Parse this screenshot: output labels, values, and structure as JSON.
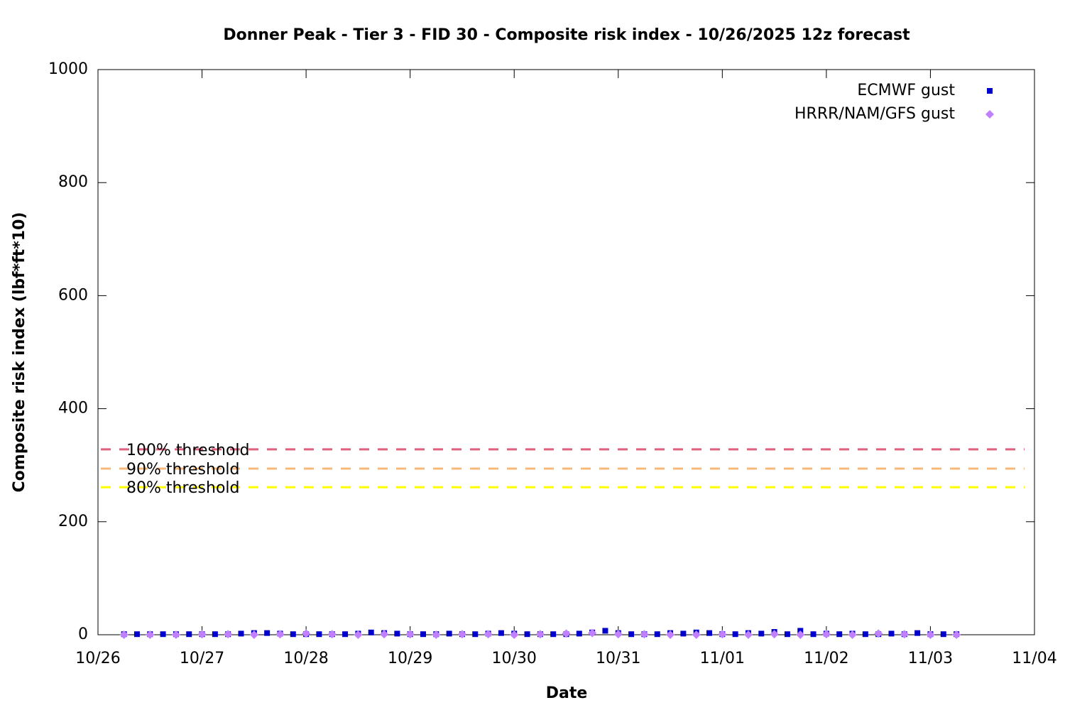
{
  "chart_data": {
    "type": "scatter",
    "title": "Donner Peak - Tier 3 - FID 30 - Composite risk index - 10/26/2025 12z forecast",
    "xlabel": "Date",
    "ylabel": "Composite risk index (lbf*ft*10)",
    "xlim": [
      0,
      9
    ],
    "xticks": [
      {
        "value": 0,
        "label": "10/26"
      },
      {
        "value": 1,
        "label": "10/27"
      },
      {
        "value": 2,
        "label": "10/28"
      },
      {
        "value": 3,
        "label": "10/29"
      },
      {
        "value": 4,
        "label": "10/30"
      },
      {
        "value": 5,
        "label": "10/31"
      },
      {
        "value": 6,
        "label": "11/01"
      },
      {
        "value": 7,
        "label": "11/02"
      },
      {
        "value": 8,
        "label": "11/03"
      },
      {
        "value": 9,
        "label": "11/04"
      }
    ],
    "ylim": [
      0,
      1000
    ],
    "yticks": [
      0,
      200,
      400,
      600,
      800,
      1000
    ],
    "legend": "top-right",
    "thresholds": [
      {
        "label": "100% threshold",
        "value": 328,
        "color": "#e0607e"
      },
      {
        "label": "90% threshold",
        "value": 294,
        "color": "#f7b87a"
      },
      {
        "label": "80% threshold",
        "value": 261,
        "color": "#ffff00"
      }
    ],
    "series": [
      {
        "name": "ECMWF gust",
        "color": "#0000cc",
        "marker": "square",
        "x": [
          0.25,
          0.375,
          0.5,
          0.625,
          0.75,
          0.875,
          1,
          1.125,
          1.25,
          1.375,
          1.5,
          1.625,
          1.75,
          1.875,
          2,
          2.125,
          2.25,
          2.375,
          2.5,
          2.625,
          2.75,
          2.875,
          3,
          3.125,
          3.25,
          3.375,
          3.5,
          3.625,
          3.75,
          3.875,
          4,
          4.125,
          4.25,
          4.375,
          4.5,
          4.625,
          4.75,
          4.875,
          5,
          5.125,
          5.25,
          5.375,
          5.5,
          5.625,
          5.75,
          5.875,
          6,
          6.125,
          6.25,
          6.375,
          6.5,
          6.625,
          6.75,
          6.875,
          7,
          7.125,
          7.25,
          7.375,
          7.5,
          7.625,
          7.75,
          7.875,
          8,
          8.125,
          8.25
        ],
        "values": [
          1,
          1,
          1,
          1,
          1,
          1,
          1,
          1,
          1,
          2,
          3,
          3,
          2,
          1,
          1,
          1,
          1,
          1,
          2,
          4,
          3,
          2,
          1,
          1,
          1,
          2,
          1,
          1,
          2,
          3,
          2,
          1,
          1,
          1,
          1,
          2,
          4,
          7,
          3,
          1,
          1,
          1,
          3,
          2,
          4,
          3,
          1,
          1,
          3,
          2,
          5,
          1,
          7,
          1,
          2,
          1,
          2,
          1,
          1,
          2,
          1,
          3,
          1,
          1,
          1
        ]
      },
      {
        "name": "HRRR/NAM/GFS gust",
        "color": "#c080ff",
        "marker": "diamond",
        "x": [
          0.25,
          0.5,
          0.75,
          1,
          1.25,
          1.5,
          1.75,
          2,
          2.25,
          2.5,
          2.75,
          3,
          3.25,
          3.5,
          3.75,
          4,
          4.25,
          4.5,
          4.75,
          5,
          5.25,
          5.5,
          5.75,
          6,
          6.25,
          6.5,
          6.75,
          7,
          7.25,
          7.5,
          7.75,
          8,
          8.25
        ],
        "values": [
          0,
          0,
          0,
          1,
          1,
          0,
          1,
          2,
          1,
          0,
          1,
          1,
          0,
          1,
          1,
          0,
          1,
          2,
          3,
          1,
          1,
          0,
          0,
          1,
          0,
          1,
          0,
          1,
          0,
          2,
          1,
          0,
          0
        ]
      }
    ]
  }
}
